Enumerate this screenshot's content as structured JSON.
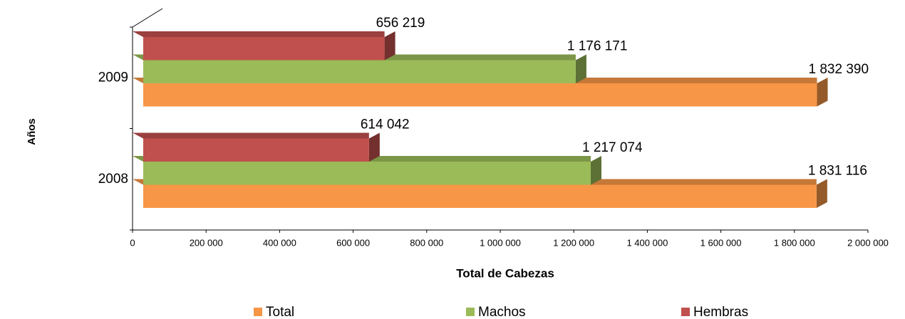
{
  "chart_data": {
    "type": "bar3d_horizontal",
    "xlabel": "Total de Cabezas",
    "ylabel": "Años",
    "categories": [
      "2008",
      "2009"
    ],
    "series": [
      {
        "name": "Total",
        "color": "#f79646",
        "values": [
          1831116,
          1832390
        ],
        "value_labels": [
          "1 831 116",
          "1 832 390"
        ]
      },
      {
        "name": "Machos",
        "color": "#9bbb59",
        "values": [
          1217074,
          1176171
        ],
        "value_labels": [
          "1 217 074",
          "1 176 171"
        ]
      },
      {
        "name": "Hembras",
        "color": "#c0504d",
        "values": [
          614042,
          656219
        ],
        "value_labels": [
          "614 042",
          "656 219"
        ]
      }
    ],
    "xlim": [
      0,
      2000000
    ],
    "xticks": [
      0,
      {
        "value": 200000,
        "label": "200 000"
      },
      {
        "value": 400000,
        "label": "400 000"
      },
      {
        "value": 600000,
        "label": "600 000"
      },
      {
        "value": 800000,
        "label": "800 000"
      },
      {
        "value": 1000000,
        "label": "1 000 000"
      },
      {
        "value": 1200000,
        "label": "1 200 000"
      },
      {
        "value": 1400000,
        "label": "1 400 000"
      },
      {
        "value": 1600000,
        "label": "1 600 000"
      },
      {
        "value": 1800000,
        "label": "1 800 000"
      },
      {
        "value": 2000000,
        "label": "2 000 000"
      }
    ],
    "grid": false,
    "legend": "bottom"
  }
}
